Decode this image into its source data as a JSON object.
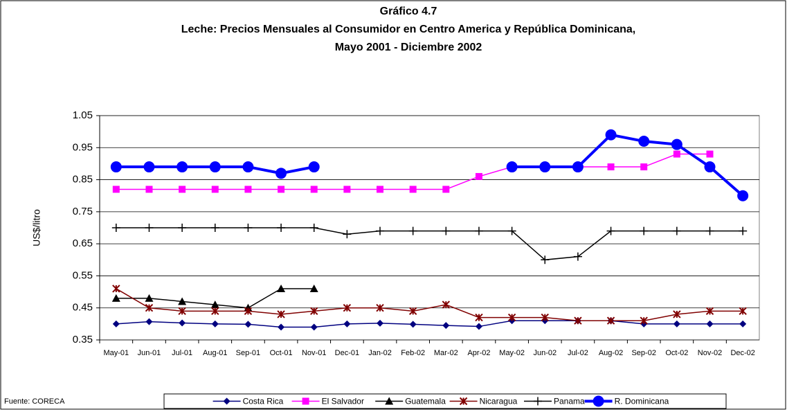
{
  "chart_data": {
    "type": "line",
    "title": [
      "Gráfico 4.7",
      "Leche: Precios Mensuales al Consumidor en Centro America y República Dominicana,",
      "Mayo 2001 - Diciembre 2002"
    ],
    "y_label": "US$/litro",
    "source": "Fuente: CORECA",
    "categories": [
      "May-01",
      "Jun-01",
      "Jul-01",
      "Aug-01",
      "Sep-01",
      "Oct-01",
      "Nov-01",
      "Dec-01",
      "Jan-02",
      "Feb-02",
      "Mar-02",
      "Apr-02",
      "May-02",
      "Jun-02",
      "Jul-02",
      "Aug-02",
      "Sep-02",
      "Oct-02",
      "Nov-02",
      "Dec-02"
    ],
    "ylim": [
      0.35,
      1.05
    ],
    "yticks": [
      {
        "value": 0.35,
        "label": "0.35"
      },
      {
        "value": 0.45,
        "label": "0.45"
      },
      {
        "value": 0.55,
        "label": "0.55"
      },
      {
        "value": 0.65,
        "label": "0.65"
      },
      {
        "value": 0.75,
        "label": "0.75"
      },
      {
        "value": 0.85,
        "label": "0.85"
      },
      {
        "value": 0.95,
        "label": "0.95"
      },
      {
        "value": 1.05,
        "label": "1.05"
      }
    ],
    "grid": true,
    "legend": "bottom",
    "series": [
      {
        "name": "Costa Rica",
        "color": "#000080",
        "marker": "diamond",
        "values": [
          0.4,
          0.407,
          0.403,
          0.4,
          0.399,
          0.39,
          0.39,
          0.4,
          0.402,
          0.399,
          0.395,
          0.392,
          0.41,
          0.41,
          0.41,
          0.41,
          0.4,
          0.4,
          0.4,
          0.4
        ]
      },
      {
        "name": "El Salvador",
        "color": "#ff00ff",
        "marker": "square",
        "values": [
          0.82,
          0.82,
          0.82,
          0.82,
          0.82,
          0.82,
          0.82,
          0.82,
          0.82,
          0.82,
          0.82,
          0.86,
          0.89,
          0.89,
          0.89,
          0.89,
          0.89,
          0.93,
          0.93,
          null
        ]
      },
      {
        "name": "Guatemala",
        "color": "#000000",
        "marker": "triangle",
        "values": [
          0.48,
          0.48,
          0.47,
          0.46,
          0.45,
          0.51,
          0.51,
          null,
          null,
          null,
          null,
          null,
          null,
          null,
          null,
          null,
          null,
          null,
          null,
          null
        ]
      },
      {
        "name": "Nicaragua",
        "color": "#800000",
        "marker": "star",
        "values": [
          0.51,
          0.45,
          0.44,
          0.44,
          0.44,
          0.43,
          0.44,
          0.45,
          0.45,
          0.44,
          0.46,
          0.42,
          0.42,
          0.42,
          0.41,
          0.41,
          0.41,
          0.43,
          0.44,
          0.44
        ]
      },
      {
        "name": "Panama",
        "color": "#000000",
        "marker": "plus",
        "values": [
          0.7,
          0.7,
          0.7,
          0.7,
          0.7,
          0.7,
          0.7,
          0.68,
          0.69,
          0.69,
          0.69,
          0.69,
          0.69,
          0.6,
          0.61,
          0.69,
          0.69,
          0.69,
          0.69,
          0.69
        ]
      },
      {
        "name": "R. Dominicana",
        "color": "#0000ff",
        "marker": "circle",
        "values": [
          0.89,
          0.89,
          0.89,
          0.89,
          0.89,
          0.87,
          0.89,
          null,
          null,
          null,
          null,
          null,
          0.89,
          0.89,
          0.89,
          0.99,
          0.97,
          0.96,
          0.89,
          0.8
        ]
      }
    ]
  }
}
